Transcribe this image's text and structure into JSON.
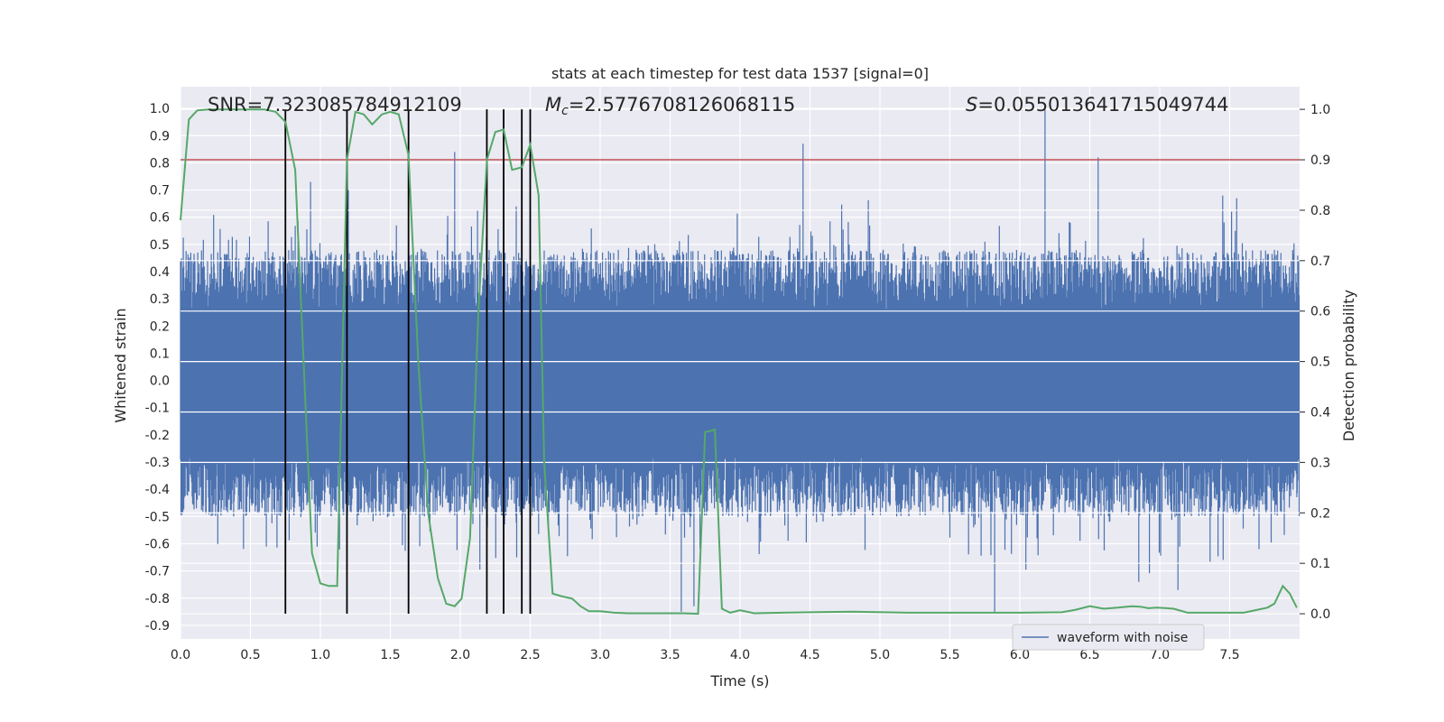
{
  "chart_data": {
    "type": "line",
    "title": "stats at each timestep for test data 1537 [signal=0]",
    "xlabel": "Time (s)",
    "ylabel": "Whitened strain",
    "y2label": "Detection probability",
    "xlim": [
      0,
      8
    ],
    "ylim": [
      -0.95,
      1.08
    ],
    "y2lim": [
      -0.05,
      1.045
    ],
    "xticks": [
      "0.0",
      "0.5",
      "1.0",
      "1.5",
      "2.0",
      "2.5",
      "3.0",
      "3.5",
      "4.0",
      "4.5",
      "5.0",
      "5.5",
      "6.0",
      "6.5",
      "7.0",
      "7.5"
    ],
    "yticks": [
      "1.0",
      "0.9",
      "0.8",
      "0.7",
      "0.6",
      "0.5",
      "0.4",
      "0.3",
      "0.2",
      "0.1",
      "0.0",
      "-0.1",
      "-0.2",
      "-0.3",
      "-0.4",
      "-0.5",
      "-0.6",
      "-0.7",
      "-0.8",
      "-0.9"
    ],
    "y2ticks": [
      "1.0",
      "0.9",
      "0.8",
      "0.7",
      "0.6",
      "0.5",
      "0.4",
      "0.3",
      "0.2",
      "0.1",
      "0.0"
    ],
    "grid": true,
    "legend_position": "lower-right",
    "annotations": {
      "snr": "SNR=7.323085784912109",
      "mc_symbol": "M",
      "mc_sub": "c",
      "mc_value": "=2.5776708126068115",
      "s_symbol": "S",
      "s_value": "=0.055013641715049744"
    },
    "threshold": {
      "y": 0.9,
      "axis": "right",
      "color": "#c44e52"
    },
    "detection_lines_x": [
      0.75,
      1.19,
      1.63,
      2.19,
      2.31,
      2.44,
      2.5
    ],
    "detection_line_range": [
      0.0,
      1.0
    ],
    "series": [
      {
        "name": "waveform with noise",
        "axis": "left",
        "color": "#4c72b0",
        "kind": "noise",
        "base_amplitude": 0.45,
        "spikes": [
          [
            0.75,
            0.68
          ],
          [
            0.93,
            0.73
          ],
          [
            1.2,
            0.7
          ],
          [
            1.63,
            -0.69
          ],
          [
            1.96,
            0.84
          ],
          [
            3.58,
            -0.85
          ],
          [
            3.67,
            -0.83
          ],
          [
            4.45,
            0.87
          ],
          [
            5.82,
            -0.85
          ],
          [
            6.18,
            1.0
          ],
          [
            6.56,
            0.82
          ],
          [
            6.85,
            -0.74
          ],
          [
            7.13,
            -0.77
          ],
          [
            7.45,
            0.68
          ],
          [
            7.55,
            0.67
          ]
        ]
      },
      {
        "name": "detection probability",
        "axis": "right",
        "color": "#55a868",
        "x": [
          0.0,
          0.06,
          0.12,
          0.2,
          0.3,
          0.4,
          0.5,
          0.6,
          0.68,
          0.75,
          0.82,
          0.88,
          0.94,
          1.0,
          1.06,
          1.12,
          1.19,
          1.25,
          1.31,
          1.37,
          1.44,
          1.5,
          1.56,
          1.63,
          1.7,
          1.77,
          1.84,
          1.9,
          1.96,
          2.01,
          2.07,
          2.13,
          2.19,
          2.25,
          2.31,
          2.37,
          2.44,
          2.5,
          2.56,
          2.6,
          2.66,
          2.72,
          2.8,
          2.86,
          2.92,
          3.0,
          3.1,
          3.2,
          3.4,
          3.6,
          3.7,
          3.75,
          3.82,
          3.87,
          3.93,
          4.0,
          4.1,
          4.3,
          4.5,
          4.8,
          5.2,
          5.6,
          6.0,
          6.3,
          6.4,
          6.5,
          6.6,
          6.7,
          6.8,
          6.86,
          6.92,
          6.98,
          7.05,
          7.1,
          7.2,
          7.4,
          7.6,
          7.7,
          7.77,
          7.82,
          7.88,
          7.93,
          7.98
        ],
        "values": [
          0.78,
          0.98,
          0.998,
          1.0,
          1.0,
          1.0,
          1.0,
          1.0,
          0.995,
          0.975,
          0.88,
          0.5,
          0.12,
          0.06,
          0.055,
          0.055,
          0.9,
          0.995,
          0.99,
          0.97,
          0.99,
          0.995,
          0.99,
          0.91,
          0.5,
          0.2,
          0.07,
          0.02,
          0.015,
          0.03,
          0.15,
          0.6,
          0.9,
          0.955,
          0.96,
          0.88,
          0.885,
          0.93,
          0.83,
          0.3,
          0.04,
          0.035,
          0.03,
          0.015,
          0.005,
          0.005,
          0.002,
          0.001,
          0.001,
          0.001,
          0.0,
          0.36,
          0.365,
          0.01,
          0.002,
          0.007,
          0.001,
          0.002,
          0.003,
          0.004,
          0.002,
          0.002,
          0.002,
          0.003,
          0.008,
          0.015,
          0.01,
          0.012,
          0.015,
          0.014,
          0.011,
          0.012,
          0.011,
          0.01,
          0.002,
          0.002,
          0.002,
          0.008,
          0.012,
          0.02,
          0.055,
          0.04,
          0.012
        ]
      }
    ]
  }
}
